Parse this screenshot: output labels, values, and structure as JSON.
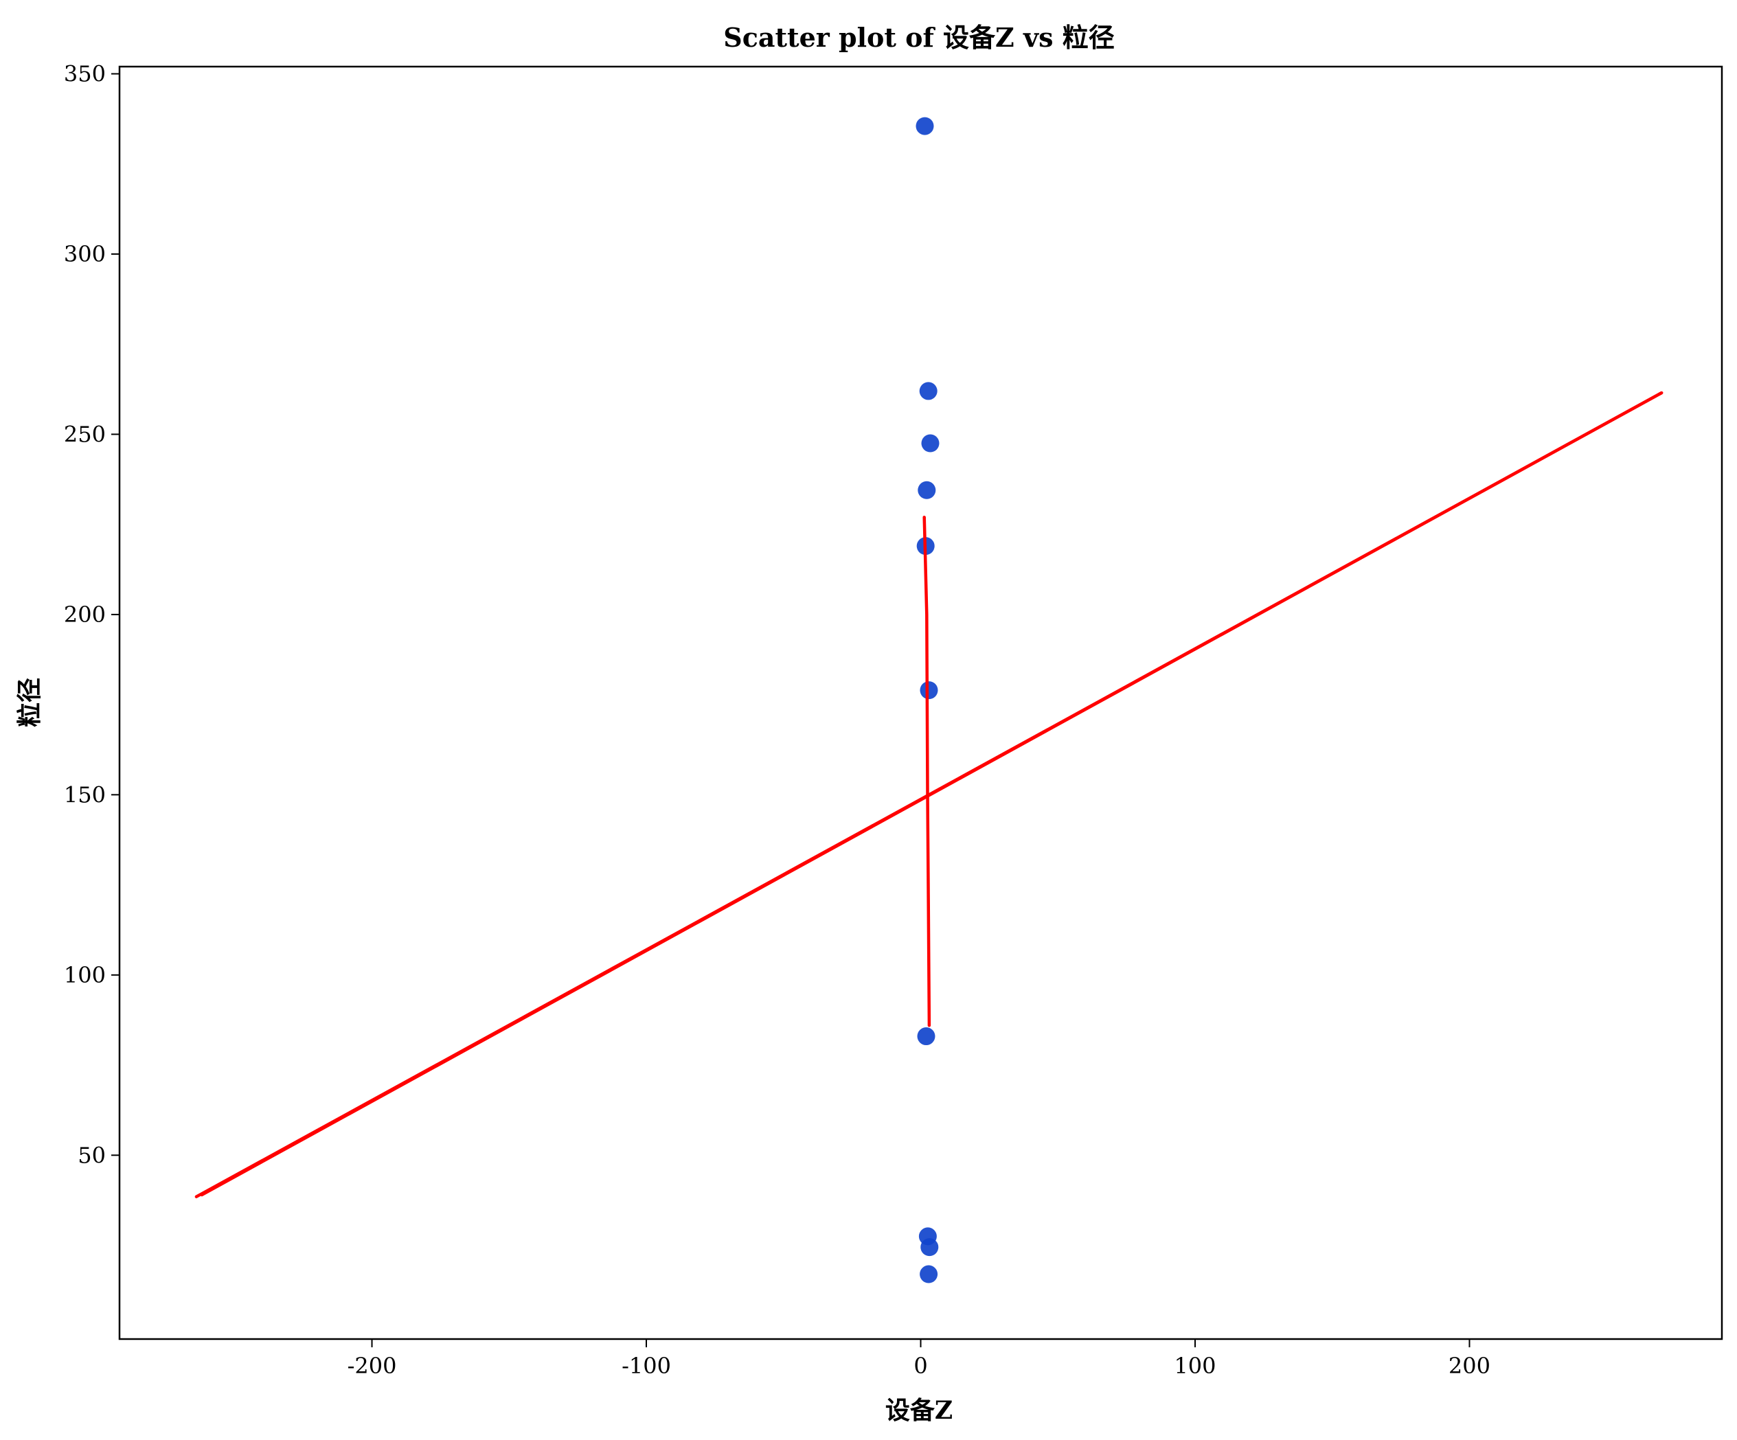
{
  "chart_data": {
    "type": "scatter",
    "title": "Scatter plot of 设备Z vs 粒径",
    "xlabel": "设备Z",
    "ylabel": "粒径",
    "xlim": [
      -292,
      292
    ],
    "ylim": [
      -1,
      352
    ],
    "xticks": [
      -200,
      -100,
      0,
      100,
      200
    ],
    "yticks": [
      50,
      100,
      150,
      200,
      250,
      300,
      350
    ],
    "grid": false,
    "legend": "none",
    "colors": {
      "points": "#1144cc",
      "fit": "#ff0000"
    },
    "series": [
      {
        "kind": "scatter",
        "points": [
          [
            1.5,
            335.5
          ],
          [
            2.8,
            262
          ],
          [
            3.5,
            247.5
          ],
          [
            2.2,
            234.5
          ],
          [
            1.8,
            219
          ],
          [
            3.0,
            179
          ],
          [
            2.0,
            83
          ],
          [
            2.6,
            27.5
          ],
          [
            3.2,
            24.5
          ],
          [
            2.9,
            17
          ]
        ]
      },
      {
        "kind": "line",
        "segments": [
          [
            [
              -264,
              38.5
            ],
            [
              270,
              261.5
            ]
          ],
          [
            [
              270,
              261.5
            ],
            [
              -262,
              39
            ]
          ],
          [
            [
              1.3,
              227
            ],
            [
              2.2,
              200
            ],
            [
              2.5,
              150
            ],
            [
              2.8,
              120
            ],
            [
              3.1,
              86
            ]
          ]
        ]
      }
    ]
  }
}
